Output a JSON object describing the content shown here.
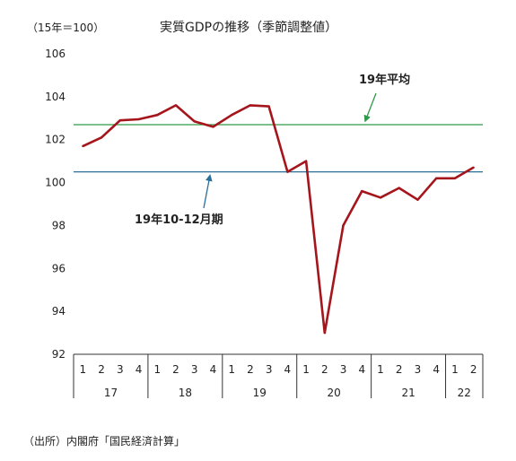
{
  "chart_data": {
    "type": "line",
    "title": "実質GDPの推移（季節調整値）",
    "unit_label": "（15年＝100）",
    "ylim": [
      92,
      106
    ],
    "yticks": [
      "92",
      "94",
      "96",
      "98",
      "100",
      "102",
      "104",
      "106"
    ],
    "grid": false,
    "quarter_labels": [
      "1",
      "2",
      "3",
      "4",
      "1",
      "2",
      "3",
      "4",
      "1",
      "2",
      "3",
      "4",
      "1",
      "2",
      "3",
      "4",
      "1",
      "2",
      "3",
      "4",
      "1",
      "2"
    ],
    "year_groups": [
      {
        "label": "17",
        "count": 4
      },
      {
        "label": "18",
        "count": 4
      },
      {
        "label": "19",
        "count": 4
      },
      {
        "label": "20",
        "count": 4
      },
      {
        "label": "21",
        "count": 4
      },
      {
        "label": "22",
        "count": 2
      }
    ],
    "series": [
      {
        "values": [
          101.7,
          102.1,
          102.9,
          102.95,
          103.15,
          103.6,
          102.85,
          102.6,
          103.15,
          103.6,
          103.55,
          100.5,
          101.0,
          93.0,
          98.0,
          99.6,
          99.3,
          99.75,
          99.2,
          100.2,
          100.2,
          100.7
        ],
        "color": "#a5151c"
      }
    ],
    "reference_lines": [
      {
        "label": "19年平均",
        "value": 102.7,
        "color": "#2e9a48"
      },
      {
        "label": "19年10-12月期",
        "value": 100.5,
        "color": "#2a6f97"
      }
    ]
  },
  "source": "（出所）内閣府「国民経済計算」"
}
